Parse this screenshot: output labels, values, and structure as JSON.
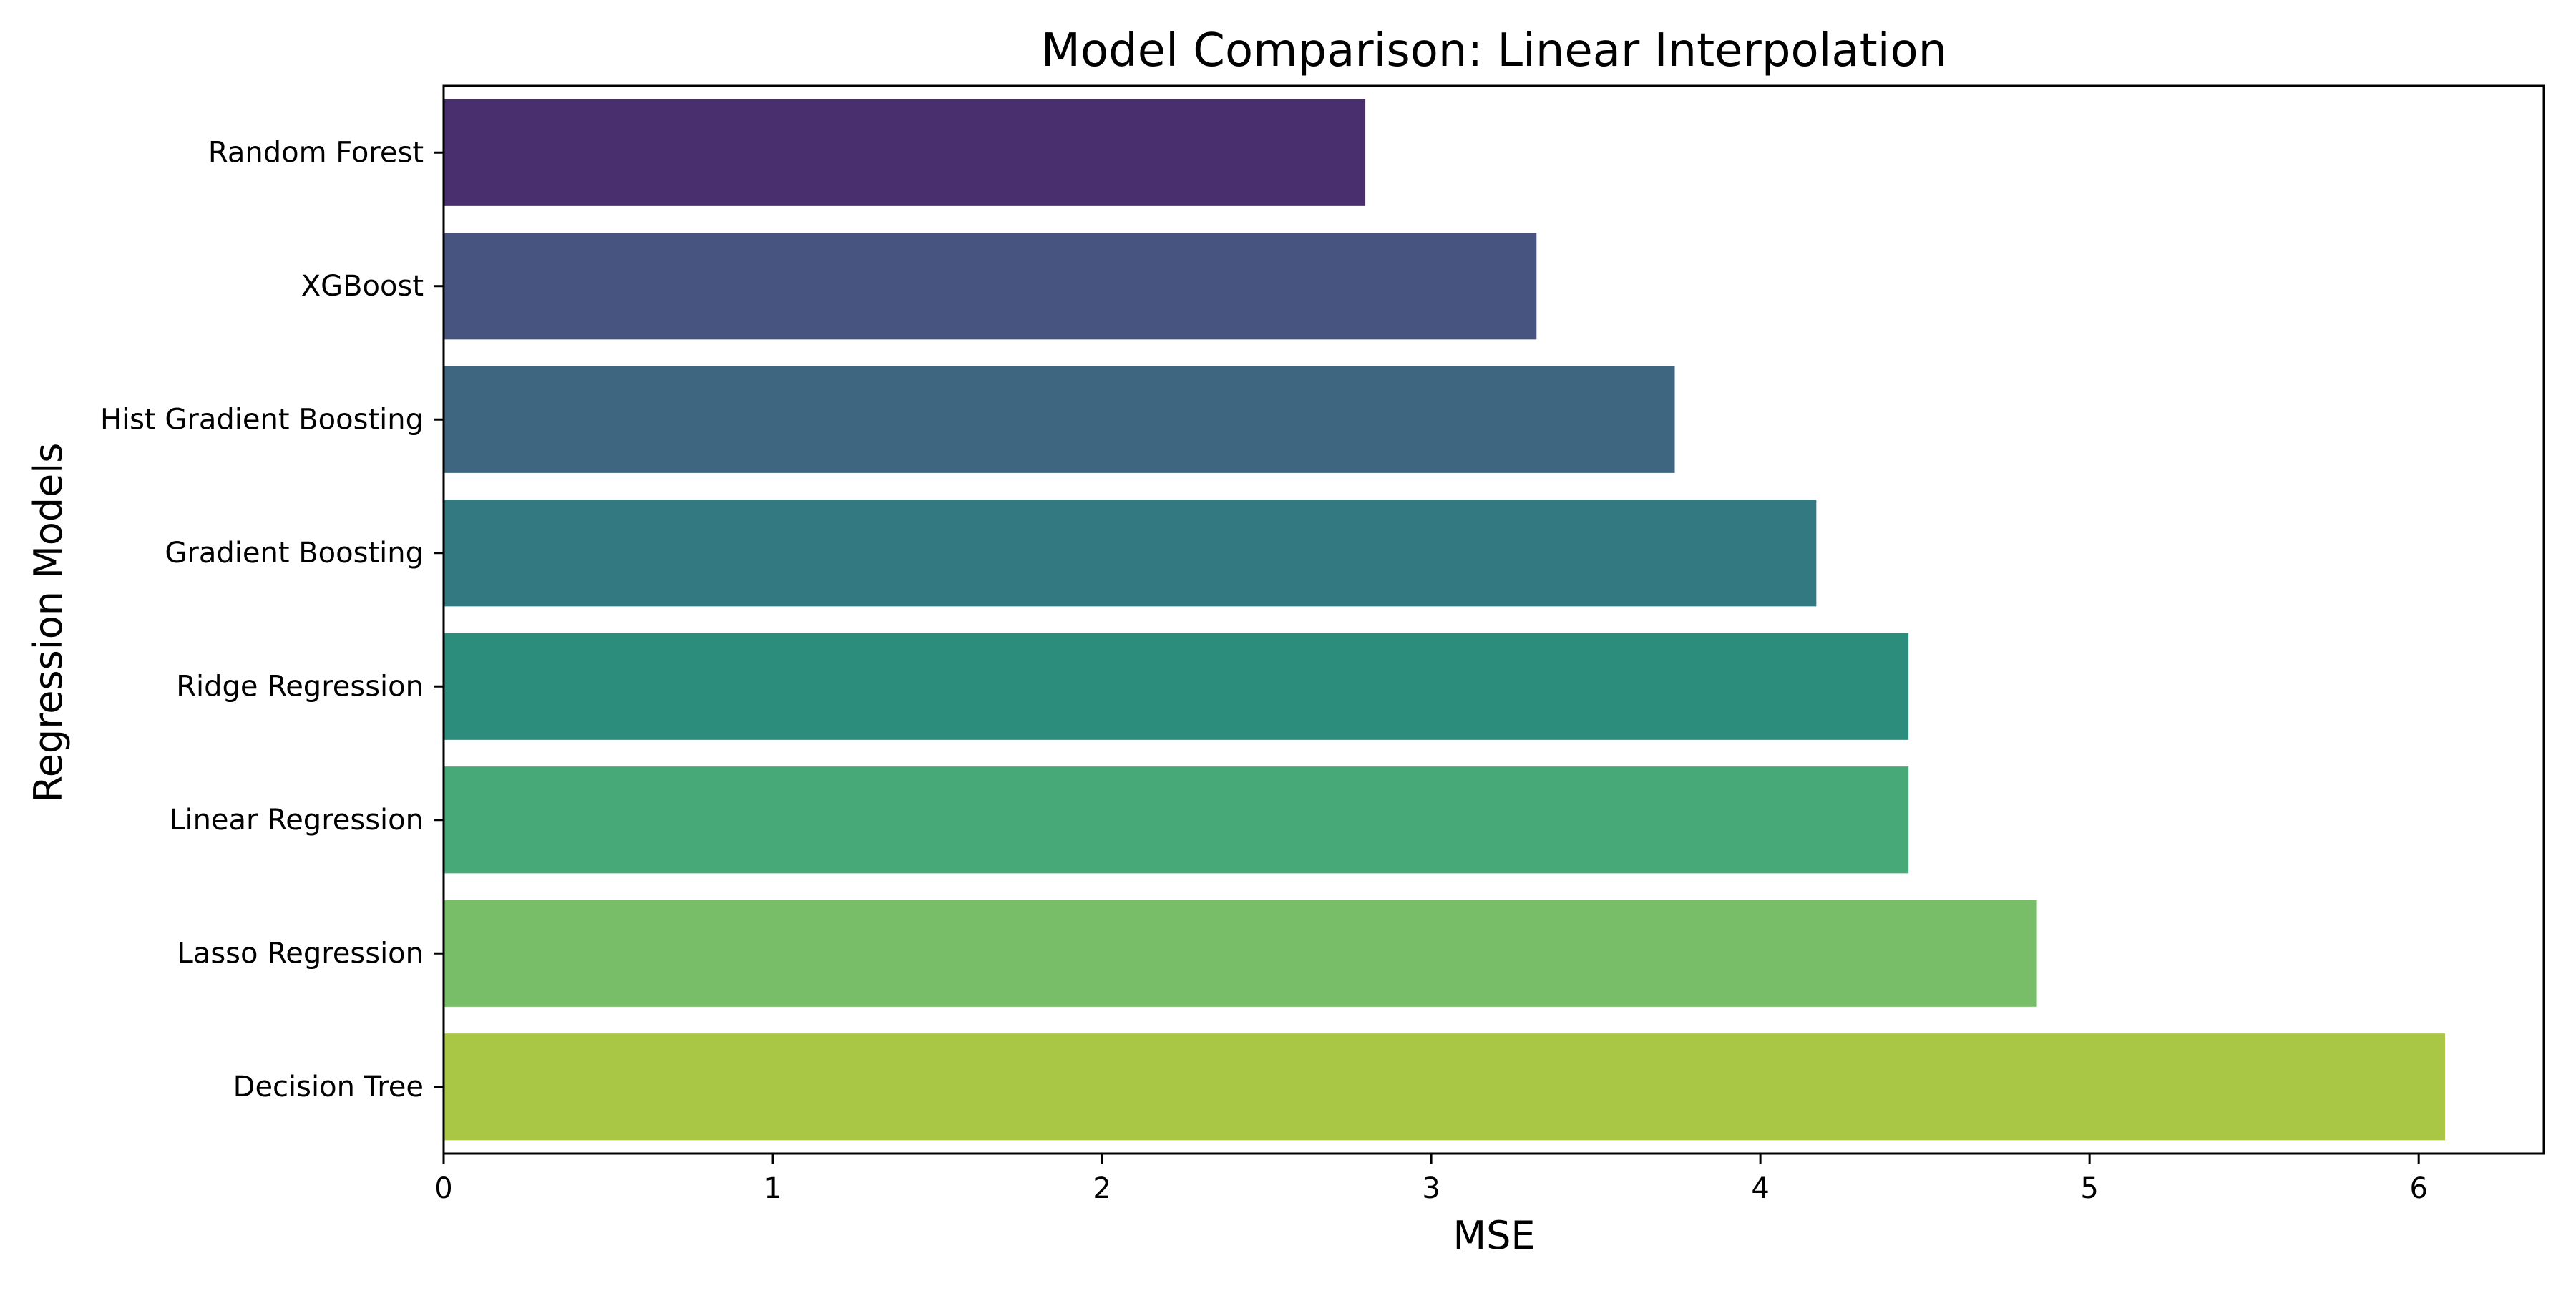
{
  "chart_data": {
    "type": "bar",
    "orientation": "horizontal",
    "title": "Model Comparison: Linear Interpolation",
    "xlabel": "MSE",
    "ylabel": "Regression Models",
    "xlim": [
      0,
      6.38
    ],
    "xticks": [
      0,
      1,
      2,
      3,
      4,
      5,
      6
    ],
    "grid": false,
    "legend": "none",
    "categories": [
      "Random Forest",
      "XGBoost",
      "Hist Gradient Boosting",
      "Gradient Boosting",
      "Ridge Regression",
      "Linear Regression",
      "Lasso Regression",
      "Decision Tree"
    ],
    "values": [
      2.8,
      3.32,
      3.74,
      4.17,
      4.45,
      4.45,
      4.84,
      6.08
    ],
    "colors": [
      "#4a2f6e",
      "#475480",
      "#3e6681",
      "#337982",
      "#2d8d7c",
      "#47a878",
      "#78be69",
      "#a9c744"
    ]
  }
}
